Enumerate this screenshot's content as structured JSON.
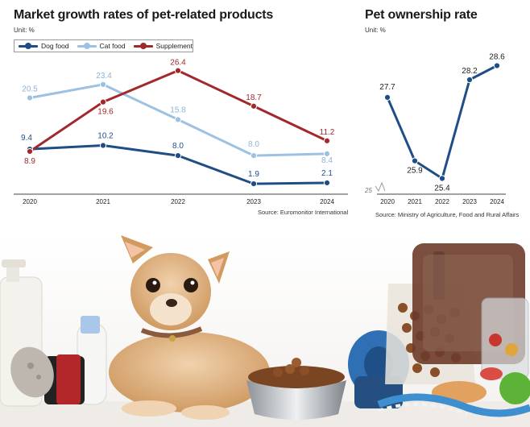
{
  "charts_meta": {
    "left_unit": "Unit: %",
    "left_source": "Source: Euromonitor International",
    "right_unit": "Unit: %",
    "right_source": "Source: Ministry of Agriculture, Food and Rural Affairs"
  },
  "chart_data": [
    {
      "type": "line",
      "title": "Market growth rates of pet-related products",
      "xlabel": "",
      "ylabel": "",
      "categories": [
        "2020",
        "2021",
        "2022",
        "2023",
        "2024"
      ],
      "ylim": [
        0,
        30
      ],
      "legend_position": "top-left",
      "series": [
        {
          "name": "Dog food",
          "values": [
            9.4,
            10.2,
            8.0,
            1.9,
            2.1
          ],
          "color": "#1f4e86",
          "labels": [
            "9.4",
            "10.2",
            "8.0",
            "1.9",
            "2.1"
          ]
        },
        {
          "name": "Cat food",
          "values": [
            20.5,
            23.4,
            15.8,
            8.0,
            8.4
          ],
          "color": "#9cc1e3",
          "labels": [
            "20.5",
            "23.4",
            "15.8",
            "8.0",
            "8.4"
          ]
        },
        {
          "name": "Supplement",
          "values": [
            8.9,
            19.6,
            26.4,
            18.7,
            11.2
          ],
          "color": "#a3282c",
          "labels": [
            "8.9",
            "19.6",
            "26.4",
            "18.7",
            "11.2"
          ]
        }
      ]
    },
    {
      "type": "line",
      "title": "Pet ownership rate",
      "xlabel": "",
      "ylabel": "",
      "categories": [
        "2020",
        "2021",
        "2022",
        "2023",
        "2024"
      ],
      "ylim": [
        25,
        29
      ],
      "axis_break_label": "25",
      "series": [
        {
          "name": "Pet ownership rate",
          "values": [
            27.7,
            25.9,
            25.4,
            28.2,
            28.6
          ],
          "color": "#1f4e86",
          "labels": [
            "27.7",
            "25.9",
            "25.4",
            "28.2",
            "28.6"
          ]
        }
      ]
    }
  ],
  "photo": {
    "colors": {
      "dog_fur": "#d9a872",
      "dog_light": "#f3dcc0",
      "collar": "#8a5a3c",
      "bowl": "#c8ccd0",
      "kibble": "#8a4f28",
      "leash": "#2f6fb3",
      "bottle": "#f2f0ea",
      "brush_red": "#b3262a",
      "ball_green": "#5cb338"
    }
  }
}
